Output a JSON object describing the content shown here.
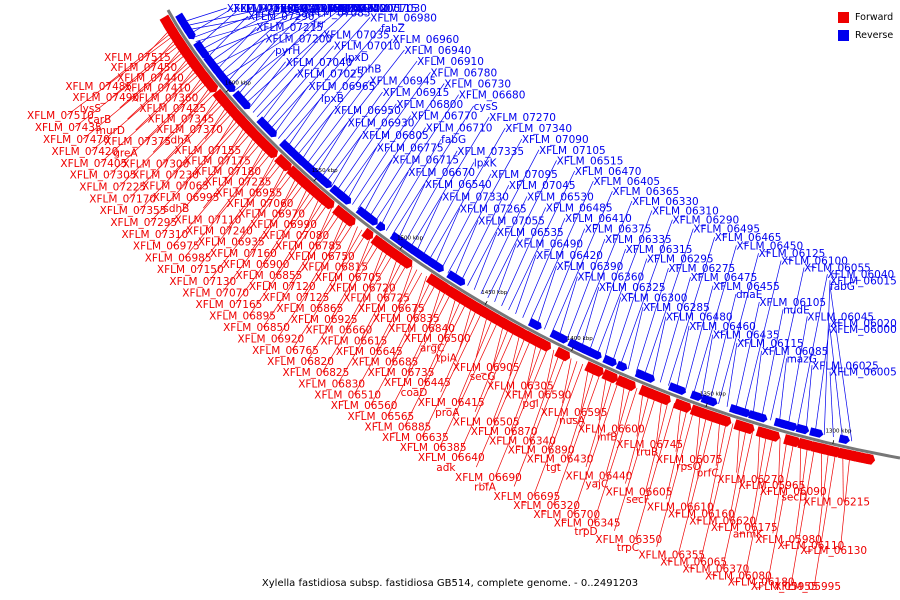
{
  "legend": [
    {
      "label": "Forward",
      "color": "#ee0000"
    },
    {
      "label": "Reverse",
      "color": "#0000ee"
    }
  ],
  "caption": "Xylella fastidiosa subsp. fastidiosa GB514, complete genome. - 0..2491203",
  "ticks": [
    "1600 kbp",
    "1550 kbp",
    "1500 kbp",
    "1450 kbp",
    "1400 kbp",
    "1350 kbp",
    "1300 kbp"
  ],
  "colors": {
    "forward": "#ee0000",
    "reverse": "#0000ee",
    "backbone": "#888888"
  },
  "forward_labels": [
    "XFLM_07515",
    "XFLM_07485",
    "XFLM_07510",
    "XFLM_07450",
    "XFLM_07490",
    "XFLM_07435",
    "XFLM_07440",
    "lysS",
    "XFLM_07470",
    "XFLM_07410",
    "carB",
    "XFLM_07420",
    "XFLM_07360",
    "murD",
    "XFLM_07405",
    "XFLM_07425",
    "XFLM_07375",
    "XFLM_07305",
    "XFLM_07345",
    "greA",
    "XFLM_07225",
    "XFLM_07370",
    "XFLM_07300",
    "XFLM_07170",
    "sdhA",
    "XFLM_07230",
    "XFLM_07355",
    "XFLM_07155",
    "XFLM_07065",
    "XFLM_07295",
    "XFLM_07175",
    "XFLM_06995",
    "XFLM_07310",
    "XFLM_07180",
    "sdhB",
    "XFLM_06975",
    "XFLM_07235",
    "XFLM_07110",
    "XFLM_06985",
    "XFLM_06955",
    "XFLM_07240",
    "XFLM_07150",
    "XFLM_07060",
    "XFLM_06935",
    "XFLM_07130",
    "XFLM_06970",
    "XFLM_07160",
    "XFLM_07070",
    "XFLM_06990",
    "XFLM_06900",
    "XFLM_07165",
    "XFLM_07080",
    "XFLM_06855",
    "XFLM_06895",
    "XFLM_06785",
    "XFLM_07120",
    "XFLM_06850",
    "XFLM_06750",
    "XFLM_07125",
    "XFLM_06920",
    "XFLM_06815",
    "XFLM_06865",
    "XFLM_06765",
    "XFLM_06705",
    "XFLM_06925",
    "XFLM_06820",
    "XFLM_06720",
    "XFLM_06660",
    "XFLM_06825",
    "XFLM_06725",
    "XFLM_06615",
    "XFLM_06830",
    "XFLM_06675",
    "XFLM_06645",
    "XFLM_06510",
    "XFLM_06835",
    "XFLM_06685",
    "XFLM_06560",
    "XFLM_06840",
    "XFLM_06735",
    "XFLM_06565",
    "XFLM_06500",
    "XFLM_06445",
    "XFLM_06885",
    "argC",
    "coaD",
    "XFLM_06635",
    "tpiA",
    "XFLM_06415",
    "XFLM_06385",
    "XFLM_06905",
    "proA",
    "XFLM_06640",
    "secG",
    "XFLM_06505",
    "adk",
    "XFLM_06305",
    "XFLM_06870",
    "XFLM_06690",
    "XFLM_06590",
    "XFLM_06340",
    "rbfA",
    "pgi",
    "XFLM_06890",
    "XFLM_06695",
    "XFLM_06595",
    "XFLM_06430",
    "XFLM_06320",
    "nusA",
    "tgt",
    "XFLM_06700",
    "XFLM_06600",
    "XFLM_06440",
    "XFLM_06345",
    "infB",
    "yajC",
    "trpD",
    "XFLM_06745",
    "XFLM_06605",
    "XFLM_06350",
    "truB",
    "secF",
    "trpC",
    "XFLM_06075",
    "XFLM_06610",
    "XFLM_06355",
    "rpsO",
    "XFLM_06160",
    "XFLM_06065",
    "prfC",
    "XFLM_06620",
    "XFLM_06370",
    "XFLM_06270",
    "XFLM_06175",
    "XFLM_06080",
    "XFLM_05965",
    "anmK",
    "XFLM_06180",
    "XFLM_06090",
    "XFLM_05980",
    "XFLM_05955",
    "secD",
    "XFLM_06110",
    "XFLM_05995",
    "XFLM_06215",
    "XFLM_06130"
  ],
  "reverse_labels": [
    "XFLM_07580",
    "XFLM_07495",
    "XFLM_07465",
    "XFLM_07565",
    "atpC",
    "XFLM_07430",
    "XFLM_07540",
    "XFLM_07365",
    "XFLM_07350",
    "XFLM_07290",
    "XFLM_07245",
    "XFLM_07220",
    "XFLM_07215",
    "XFLM_07210",
    "XFLM_07205",
    "XFLM_07200",
    "XFLM_07085",
    "glk",
    "pyrH",
    "frr",
    "XFLM_07115",
    "XFLM_07040",
    "XFLM_07035",
    "XFLM_07030",
    "XFLM_07025",
    "XFLM_07010",
    "XFLM_06980",
    "XFLM_06965",
    "lpxD",
    "fabZ",
    "lpxB",
    "rnhB",
    "XFLM_06960",
    "XFLM_06950",
    "XFLM_06945",
    "XFLM_06940",
    "XFLM_06930",
    "XFLM_06915",
    "XFLM_06910",
    "XFLM_06805",
    "XFLM_06800",
    "XFLM_06780",
    "XFLM_06775",
    "XFLM_06770",
    "XFLM_06730",
    "XFLM_06715",
    "XFLM_06710",
    "XFLM_06680",
    "XFLM_06670",
    "fabG",
    "cysS",
    "XFLM_06540",
    "XFLM_07335",
    "XFLM_07270",
    "XFLM_07330",
    "lpxK",
    "XFLM_07340",
    "XFLM_07265",
    "XFLM_07095",
    "XFLM_07090",
    "XFLM_07055",
    "XFLM_07045",
    "XFLM_07105",
    "XFLM_06535",
    "XFLM_06530",
    "XFLM_06515",
    "XFLM_06490",
    "XFLM_06485",
    "XFLM_06470",
    "XFLM_06420",
    "XFLM_06410",
    "XFLM_06405",
    "XFLM_06390",
    "XFLM_06375",
    "XFLM_06365",
    "XFLM_06360",
    "XFLM_06335",
    "XFLM_06330",
    "XFLM_06325",
    "XFLM_06315",
    "XFLM_06310",
    "XFLM_06300",
    "XFLM_06295",
    "XFLM_06290",
    "XFLM_06285",
    "XFLM_06275",
    "XFLM_06495",
    "XFLM_06480",
    "XFLM_06475",
    "XFLM_06465",
    "XFLM_06460",
    "XFLM_06455",
    "XFLM_06450",
    "XFLM_06435",
    "dnaE",
    "XFLM_06125",
    "XFLM_06115",
    "XFLM_06105",
    "XFLM_06100",
    "XFLM_06085",
    "nudE",
    "XFLM_06055",
    "mazG",
    "XFLM_06045",
    "XFLM_06040",
    "XFLM_06025",
    "XFLM_06020",
    "XFLM_06015",
    "XFLM_06005",
    "XFLM_06000",
    "fabG"
  ]
}
